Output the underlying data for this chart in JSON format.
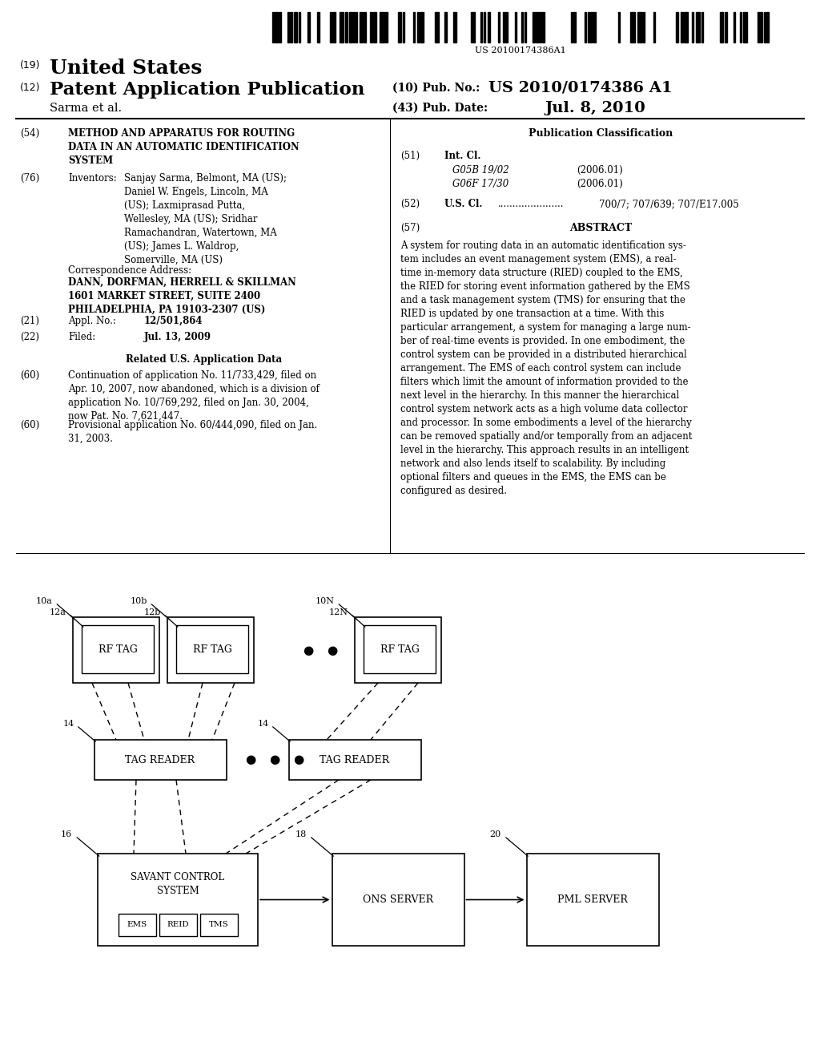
{
  "bg_color": "#ffffff",
  "barcode_text": "US 20100174386A1",
  "header": {
    "country_label": "(19)",
    "country": "United States",
    "type_label": "(12)",
    "type": "Patent Application Publication",
    "pub_no_label": "(10) Pub. No.:",
    "pub_no": "US 2010/0174386 A1",
    "author": "Sarma et al.",
    "pub_date_label": "(43) Pub. Date:",
    "pub_date": "Jul. 8, 2010"
  },
  "left_col": {
    "title_num": "(54)",
    "title": "METHOD AND APPARATUS FOR ROUTING\nDATA IN AN AUTOMATIC IDENTIFICATION\nSYSTEM",
    "inventors_num": "(76)",
    "inventors_label": "Inventors:",
    "inventors_text": "Sanjay Sarma, Belmont, MA (US);\nDaniel W. Engels, Lincoln, MA\n(US); Laxmiprasad Putta,\nWellesley, MA (US); Sridhar\nRamachandran, Watertown, MA\n(US); James L. Waldrop,\nSomerville, MA (US)",
    "corr_label": "Correspondence Address:",
    "corr_text": "DANN, DORFMAN, HERRELL & SKILLMAN\n1601 MARKET STREET, SUITE 2400\nPHILADELPHIA, PA 19103-2307 (US)",
    "appl_num": "(21)",
    "appl_label": "Appl. No.:",
    "appl_val": "12/501,864",
    "filed_num": "(22)",
    "filed_label": "Filed:",
    "filed_val": "Jul. 13, 2009",
    "related_title": "Related U.S. Application Data",
    "related1_num": "(60)",
    "related1_text": "Continuation of application No. 11/733,429, filed on\nApr. 10, 2007, now abandoned, which is a division of\napplication No. 10/769,292, filed on Jan. 30, 2004,\nnow Pat. No. 7,621,447.",
    "related2_num": "(60)",
    "related2_text": "Provisional application No. 60/444,090, filed on Jan.\n31, 2003."
  },
  "right_col": {
    "pub_class_title": "Publication Classification",
    "intcl_num": "(51)",
    "intcl_label": "Int. Cl.",
    "intcl1_code": "G05B 19/02",
    "intcl1_year": "(2006.01)",
    "intcl2_code": "G06F 17/30",
    "intcl2_year": "(2006.01)",
    "uscl_num": "(52)",
    "uscl_label": "U.S. Cl.",
    "uscl_dots": "......................",
    "uscl_val": "700/7; 707/639; 707/E17.005",
    "abstract_num": "(57)",
    "abstract_title": "ABSTRACT",
    "abstract_text": "A system for routing data in an automatic identification sys-\ntem includes an event management system (EMS), a real-\ntime in-memory data structure (RIED) coupled to the EMS,\nthe RIED for storing event information gathered by the EMS\nand a task management system (TMS) for ensuring that the\nRIED is updated by one transaction at a time. With this\nparticular arrangement, a system for managing a large num-\nber of real-time events is provided. In one embodiment, the\ncontrol system can be provided in a distributed hierarchical\narrangement. The EMS of each control system can include\nfilters which limit the amount of information provided to the\nnext level in the hierarchy. In this manner the hierarchical\ncontrol system network acts as a high volume data collector\nand processor. In some embodiments a level of the hierarchy\ncan be removed spatially and/or temporally from an adjacent\nlevel in the hierarchy. This approach results in an intelligent\nnetwork and also lends itself to scalability. By including\noptional filters and queues in the EMS, the EMS can be\nconfigured as desired."
  }
}
